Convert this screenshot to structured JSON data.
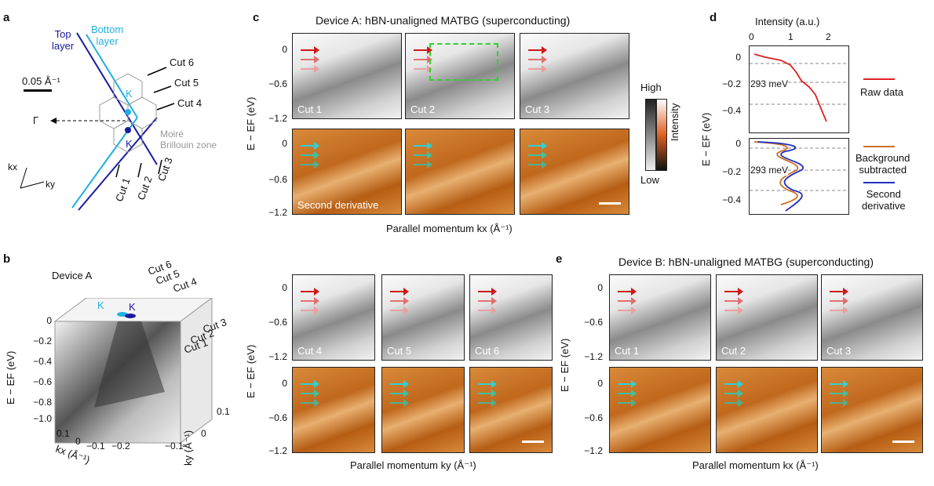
{
  "panel_a": {
    "label": "a",
    "top_layer": "Top\nlayer",
    "bottom_layer": "Bottom\nlayer",
    "scale": "0.05 Å⁻¹",
    "gamma": "Γ",
    "k_top": "K",
    "k_bottom": "K",
    "moire": "Moiré\nBrillouin zone",
    "cuts": [
      "Cut 6",
      "Cut 5",
      "Cut 4",
      "Cut 3",
      "Cut 2",
      "Cut 1"
    ],
    "axis_kx": "kx",
    "axis_ky": "ky"
  },
  "panel_b": {
    "label": "b",
    "device": "Device A",
    "k1": "K",
    "k2": "K",
    "cuts": [
      "Cut 6",
      "Cut 5",
      "Cut 4",
      "Cut 3",
      "Cut 2",
      "Cut 1"
    ],
    "yticks": [
      "0",
      "−0.2",
      "−0.4",
      "−0.6",
      "−0.8",
      "−1.0"
    ],
    "ylabel": "E − EF (eV)",
    "xticks": [
      "0.1",
      "0",
      "−0.1",
      "−0.2"
    ],
    "xlabel": "kx (Å⁻¹)",
    "zticks": [
      "0.1",
      "0",
      "−0.1"
    ],
    "zlabel": "ky (Å⁻¹)"
  },
  "panel_c": {
    "label": "c",
    "title": "Device A: hBN-unaligned MATBG (superconducting)",
    "yticks": [
      "0",
      "−0.6",
      "−1.2"
    ],
    "ylabel": "E − EF (eV)",
    "cuts_top": [
      "Cut 1",
      "Cut 2",
      "Cut 3"
    ],
    "second_derivative": "Second derivative",
    "xlabel": "Parallel momentum kx (Å⁻¹)",
    "colorbar_high": "High",
    "colorbar_low": "Low",
    "colorbar_label": "Intensity"
  },
  "panel_d": {
    "label": "d",
    "xlabel": "Intensity (a.u.)",
    "xticks": [
      "0",
      "1",
      "2"
    ],
    "yticks_top": [
      "0",
      "−0.2",
      "−0.4"
    ],
    "yticks_bottom": [
      "0",
      "−0.2",
      "−0.4"
    ],
    "ylabel": "E − EF (eV)",
    "annot1": "293 meV",
    "annot2": "293 meV",
    "legend_raw": "Raw data",
    "legend_bg": "Background\nsubtracted",
    "legend_sd": "Second\nderivative",
    "colors": {
      "raw": "#e02020",
      "bg": "#d07020",
      "sd": "#2030c0"
    }
  },
  "panel_c2": {
    "cuts": [
      "Cut 4",
      "Cut 5",
      "Cut 6"
    ],
    "yticks": [
      "0",
      "−0.6",
      "−1.2"
    ],
    "ylabel": "E − EF (eV)",
    "xlabel": "Parallel momentum ky (Å⁻¹)"
  },
  "panel_e": {
    "label": "e",
    "title": "Device B: hBN-unaligned MATBG (superconducting)",
    "cuts": [
      "Cut 1",
      "Cut 2",
      "Cut 3"
    ],
    "yticks": [
      "0",
      "−0.6",
      "−1.2"
    ],
    "ylabel": "E − EF (eV)",
    "xlabel": "Parallel momentum kx (Å⁻¹)"
  }
}
